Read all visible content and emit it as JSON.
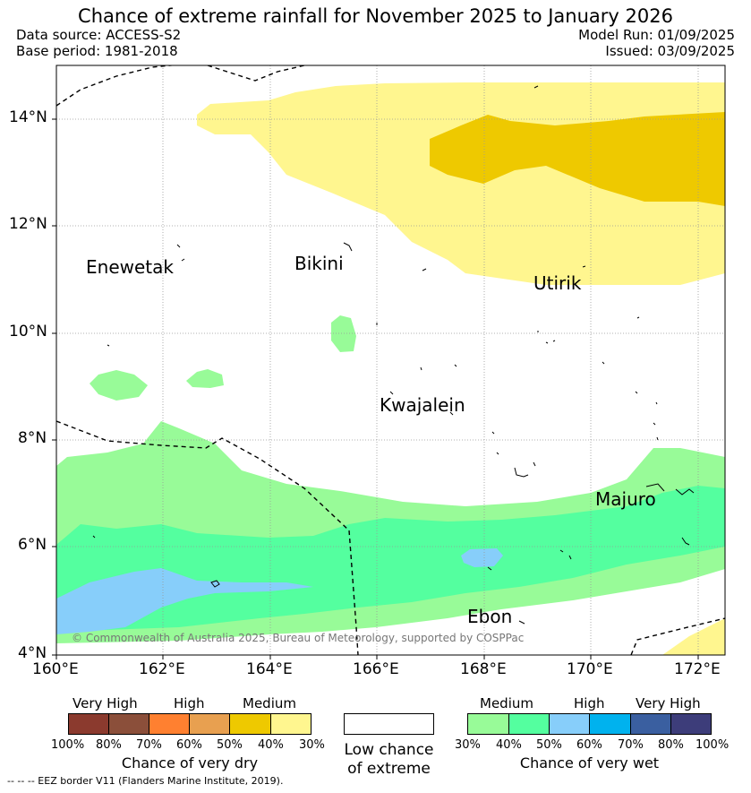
{
  "title": "Chance of extreme rainfall for November 2025 to January 2026",
  "data_source": "Data source: ACCESS-S2",
  "base_period": "Base period: 1981-2018",
  "model_run": "Model Run: 01/09/2025",
  "issued": "Issued: 03/09/2025",
  "copyright": "© Commonwealth of Australia 2025, Bureau of Meteorology, supported by COSPPac",
  "footer": "-- -- -- EEZ border V11 (Flanders Marine Institute, 2019).",
  "lat_ticks": [
    "14°N",
    "12°N",
    "10°N",
    "8°N",
    "6°N",
    "4°N"
  ],
  "lon_ticks": [
    "160°E",
    "162°E",
    "164°E",
    "166°E",
    "168°E",
    "170°E",
    "172°E"
  ],
  "places": {
    "enewetak": "Enewetak",
    "bikini": "Bikini",
    "utirik": "Utirik",
    "kwajalein": "Kwajalein",
    "majuro": "Majuro",
    "ebon": "Ebon"
  },
  "colors": {
    "dry_very_high_1": "#8b3a2e",
    "dry_very_high_2": "#8b4f3a",
    "dry_high_1": "#ff8030",
    "dry_high_2": "#e8a050",
    "dry_medium_1": "#eec900",
    "dry_medium_2": "#fff68f",
    "wet_medium_1": "#98fb98",
    "wet_medium_2": "#54ff9f",
    "wet_high_1": "#87cefa",
    "wet_high_2": "#00b2ee",
    "wet_very_high_1": "#3a5fa0",
    "wet_very_high_2": "#3d3d7a"
  },
  "legend": {
    "dry": {
      "headers": [
        "Very High",
        "High",
        "Medium"
      ],
      "ticks": [
        "100%",
        "80%",
        "70%",
        "60%",
        "50%",
        "40%",
        "30%"
      ],
      "title": "Chance of very dry"
    },
    "low": {
      "line1": "Low chance",
      "line2": "of extreme"
    },
    "wet": {
      "headers": [
        "Medium",
        "High",
        "Very High"
      ],
      "ticks": [
        "30%",
        "40%",
        "50%",
        "60%",
        "70%",
        "80%",
        "100%"
      ],
      "title": "Chance of very wet"
    }
  }
}
